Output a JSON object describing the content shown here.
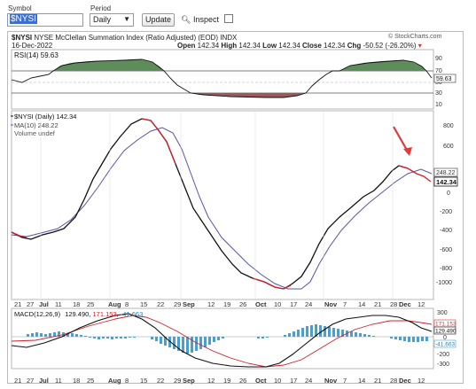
{
  "toolbar": {
    "symbol_label": "Symbol",
    "symbol_value": "$NYSI",
    "period_label": "Period",
    "period_value": "Daily",
    "update_label": "Update",
    "inspect_label": "Inspect"
  },
  "header": {
    "symbol": "$NYSI",
    "title": "NYSE McClellan Summation Index (Ratio Adjusted) (EOD) INDX",
    "date": "16-Dec-2022",
    "ohlc": "Open 142.34  High 142.34  Low 142.34  Close 142.34  Chg -50.52 (-26.20%)",
    "ohlc_fields": [
      {
        "k": "Open",
        "v": "142.34"
      },
      {
        "k": "High",
        "v": "142.34"
      },
      {
        "k": "Low",
        "v": "142.34"
      },
      {
        "k": "Close",
        "v": "142.34"
      },
      {
        "k": "Chg",
        "v": "-50.52 (-26.20%)"
      }
    ],
    "watermark": "© StockCharts.com"
  },
  "rsi_panel": {
    "legend": "RSI(14) 59.63",
    "current": "59.63",
    "ticks": [
      "90",
      "70",
      "50",
      "30",
      "10"
    ]
  },
  "main_panel": {
    "legend_items": [
      "$NYSI (Daily) 142.34",
      "MA(10) 248.22",
      "Volume undef"
    ],
    "price_tag": "248.22",
    "price_tag2": "142.34",
    "ticks": [
      "800",
      "600",
      "400",
      "200",
      "0",
      "-200",
      "-400",
      "-600",
      "-800",
      "-1000"
    ]
  },
  "macd_panel": {
    "legend_prefix": "MACD(12,26,9)",
    "legend_v1": "129.490",
    "legend_v2": "171.153",
    "legend_v3": "-41.663",
    "ticks": [
      "300",
      "200",
      "100",
      "0",
      "-100",
      "-200",
      "-300"
    ],
    "tag1": "129.490",
    "tag2": "171.153",
    "tag3": "-41.663"
  },
  "x_axis": {
    "labels": [
      "21",
      "27",
      "Jul",
      "11",
      "18",
      "25",
      "Aug",
      "8",
      "15",
      "22",
      "29",
      "Sep",
      "12",
      "19",
      "26",
      "Oct",
      "10",
      "17",
      "24",
      "Nov",
      "7",
      "14",
      "21",
      "28",
      "Dec",
      "12"
    ]
  },
  "colors": {
    "price_line": "#111111",
    "ma_line": "#5555aa",
    "red_line": "#d0202a",
    "rsi_pos_fill": "#5e8c5a",
    "rsi_neg_fill": "#9a5a5a",
    "hist_fill": "#4a9fcf",
    "arrow": "#e03a3a"
  }
}
